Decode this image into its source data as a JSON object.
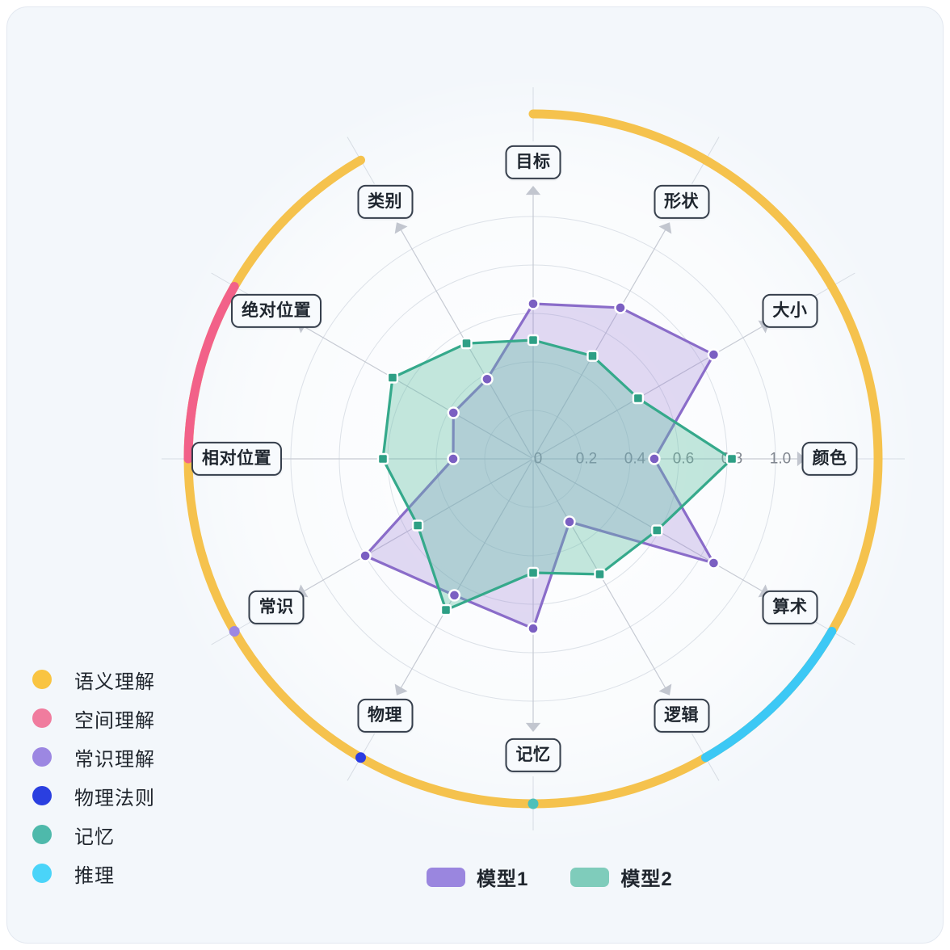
{
  "category_legend": [
    {
      "label": "语义理解",
      "color": "#F9C441"
    },
    {
      "label": "空间理解",
      "color": "#F07C9E"
    },
    {
      "label": "常识理解",
      "color": "#9C87E2"
    },
    {
      "label": "物理法则",
      "color": "#2A3FE0"
    },
    {
      "label": "记忆",
      "color": "#4EB9AB"
    },
    {
      "label": "推理",
      "color": "#4AD4F9"
    }
  ],
  "series_legend": [
    {
      "label": "模型1",
      "color": "#9A86DF"
    },
    {
      "label": "模型2",
      "color": "#7FCCBB"
    }
  ],
  "chart_data": {
    "type": "radar",
    "categories": [
      "目标",
      "形状",
      "大小",
      "颜色",
      "算术",
      "逻辑",
      "记忆",
      "物理",
      "常识",
      "相对位置",
      "绝对位置",
      "类别"
    ],
    "tick_labels": [
      "0",
      "0.2",
      "0.4",
      "0.6",
      "0.8",
      "1.0"
    ],
    "rlim": [
      0,
      1.0
    ],
    "grid": true,
    "legend_position": "bottom",
    "series": [
      {
        "name": "模型1",
        "marker": "circle",
        "line_color": "#8A6CC9",
        "marker_color": "#7B5FC2",
        "fill_color": "rgba(150,121,211,0.28)",
        "values": [
          0.64,
          0.72,
          0.86,
          0.5,
          0.86,
          0.3,
          0.7,
          0.65,
          0.8,
          0.33,
          0.38,
          0.38
        ]
      },
      {
        "name": "模型2",
        "marker": "square",
        "line_color": "#35A98B",
        "marker_color": "#2E9F85",
        "fill_color": "rgba(99,193,165,0.38)",
        "values": [
          0.49,
          0.49,
          0.5,
          0.82,
          0.59,
          0.55,
          0.47,
          0.72,
          0.55,
          0.62,
          0.67,
          0.55
        ]
      }
    ],
    "axis_groups": [
      {
        "label": "语义理解",
        "color": "#F5C24D",
        "axes": [
          "颜色",
          "大小",
          "形状",
          "目标",
          "类别"
        ]
      },
      {
        "label": "空间理解",
        "color": "#F26189",
        "axes": [
          "绝对位置",
          "相对位置"
        ]
      },
      {
        "label": "常识理解",
        "color": "#9C87E2",
        "axes": [
          "常识"
        ]
      },
      {
        "label": "物理法则",
        "color": "#2B3BE2",
        "axes": [
          "物理"
        ]
      },
      {
        "label": "记忆",
        "color": "#4DC0BA",
        "axes": [
          "记忆"
        ]
      },
      {
        "label": "推理",
        "color": "#3CC8F5",
        "axes": [
          "逻辑",
          "算术"
        ]
      }
    ]
  }
}
